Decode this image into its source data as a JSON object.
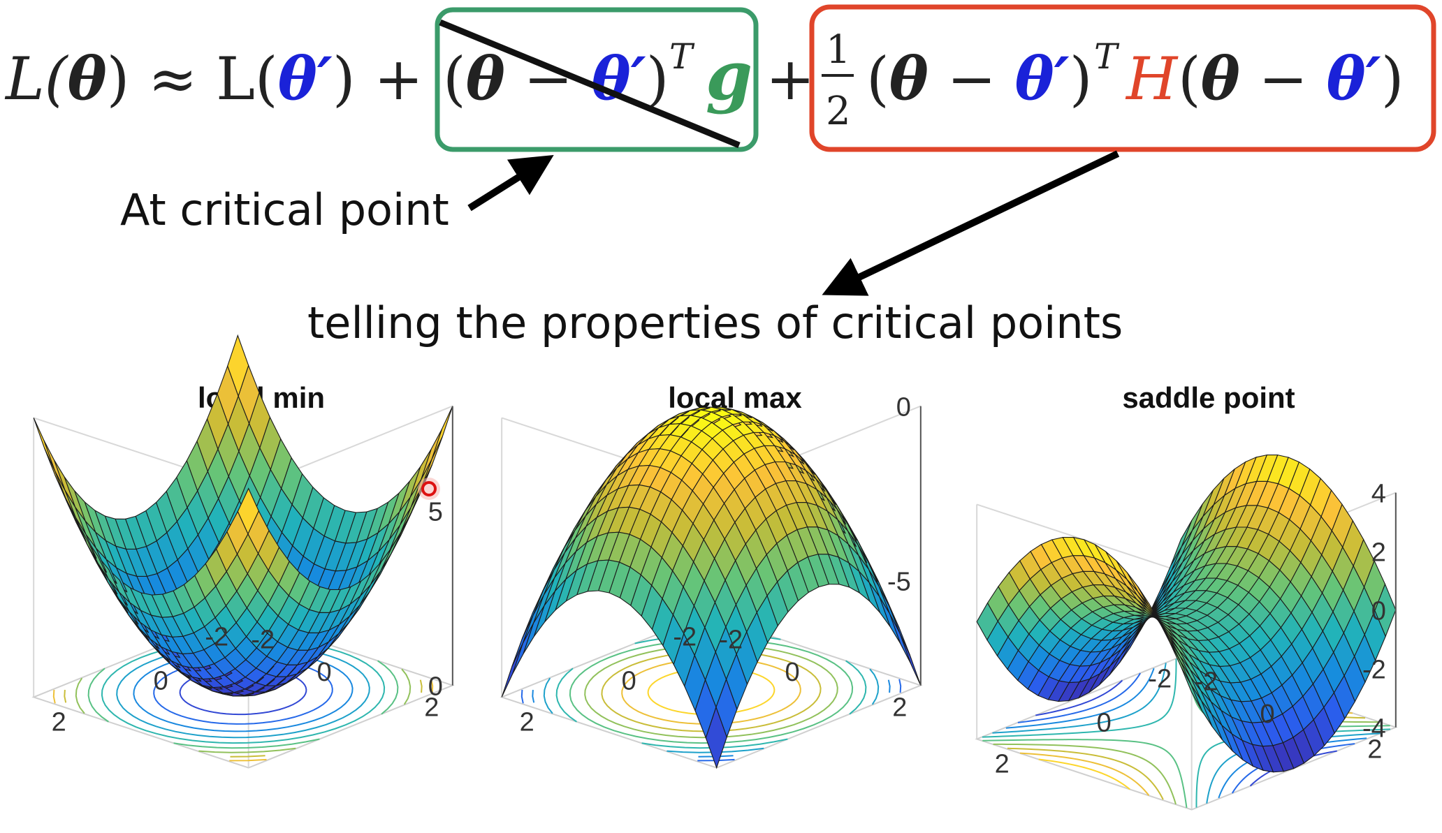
{
  "equation": {
    "lhs": "L(θ) ≈ L(θ′) + ",
    "gradient_term": "(θ − θ′)ᵀg",
    "plus": "+",
    "half_numerator": "1",
    "half_denominator": "2",
    "hessian_term": "(θ − θ′)ᵀH(θ − θ′)",
    "pieces": {
      "L1": "L(",
      "theta": "θ",
      "close_approx": ") ≈ L(",
      "theta_prime": "θ′",
      "close_plus": ") +",
      "open": "(",
      "minus": " − ",
      "close": ")",
      "T": "T",
      "g": "g",
      "H": "H"
    }
  },
  "annotations": {
    "critical_point": "At critical point",
    "properties": "telling the properties of critical points"
  },
  "colors": {
    "theta_prime": "#1a22d8",
    "g": "#3a9a5a",
    "H": "#e0452a",
    "green_box": "#3b9b6a",
    "red_box": "#e0452a"
  },
  "charts": [
    {
      "title": "local min",
      "z_ticks": [
        "5",
        "0"
      ],
      "x_ticks": [
        "2",
        "0",
        "-2"
      ],
      "y_ticks": [
        "-2",
        "0",
        "2"
      ]
    },
    {
      "title": "local max",
      "z_ticks": [
        "0",
        "-5"
      ],
      "x_ticks": [
        "2",
        "0",
        "-2"
      ],
      "y_ticks": [
        "-2",
        "0",
        "2"
      ]
    },
    {
      "title": "saddle point",
      "z_ticks": [
        "4",
        "2",
        "0",
        "-2",
        "-4"
      ],
      "x_ticks": [
        "2",
        "0",
        "-2"
      ],
      "y_ticks": [
        "-2",
        "0",
        "2"
      ]
    }
  ]
}
